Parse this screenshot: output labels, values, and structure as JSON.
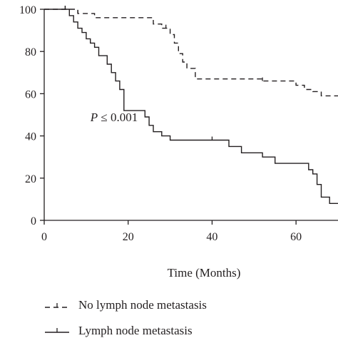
{
  "chart_data": {
    "type": "line",
    "title": "",
    "xlabel": "Time (Months)",
    "ylabel": "",
    "xlim": [
      0,
      70
    ],
    "ylim": [
      0,
      100
    ],
    "xticks": [
      0,
      20,
      40,
      60
    ],
    "yticks": [
      0,
      20,
      40,
      60,
      80,
      100
    ],
    "grid": false,
    "annotation": {
      "text_italic": "P",
      "text_rest": " ≤ 0.001",
      "x": 11,
      "y": 47
    },
    "legend_position": "bottom-left",
    "series": [
      {
        "name": "No lymph node metastasis",
        "style": "dashed",
        "x": [
          0,
          5,
          8,
          10,
          12,
          25,
          26,
          28,
          30,
          31,
          32,
          33,
          34,
          36,
          52,
          60,
          62,
          64,
          66,
          70
        ],
        "y": [
          100,
          100,
          98,
          98,
          96,
          96,
          93,
          91,
          88,
          84,
          79,
          75,
          72,
          67,
          66,
          64,
          62,
          61,
          59,
          59
        ],
        "censor_x": [
          5,
          8,
          29,
          52
        ]
      },
      {
        "name": "Lymph node metastasis",
        "style": "solid",
        "x": [
          0,
          4,
          6,
          7,
          8,
          9,
          10,
          11,
          12,
          13,
          15,
          16,
          17,
          18,
          19,
          24,
          25,
          26,
          28,
          30,
          40,
          44,
          47,
          50,
          52,
          55,
          59,
          63,
          64,
          65,
          66,
          68,
          70
        ],
        "y": [
          100,
          100,
          97,
          94,
          91,
          89,
          86,
          84,
          82,
          78,
          74,
          70,
          66,
          62,
          52,
          49,
          45,
          42,
          40,
          38,
          38,
          35,
          32,
          32,
          30,
          27,
          27,
          24,
          22,
          17,
          11,
          8,
          8
        ],
        "censor_x": [
          5,
          40
        ]
      }
    ]
  }
}
